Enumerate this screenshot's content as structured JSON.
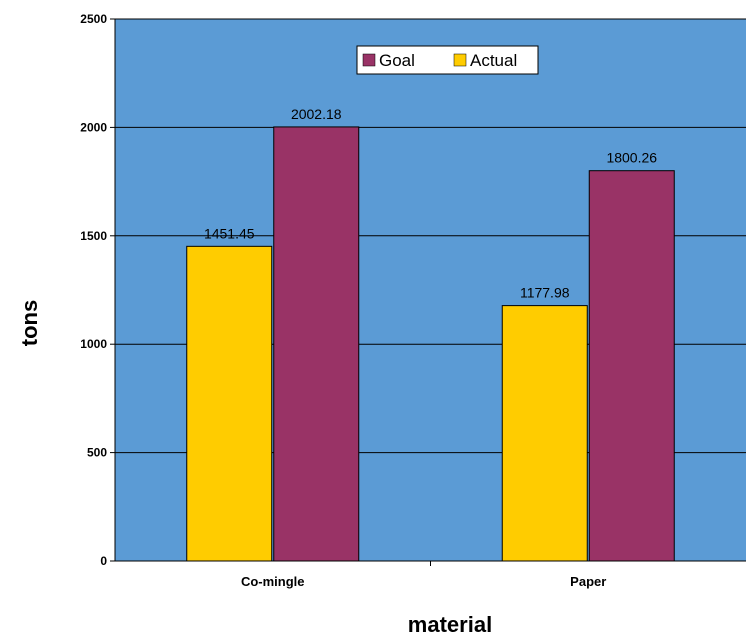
{
  "chart_data": {
    "type": "bar",
    "categories": [
      "Co-mingle",
      "Paper"
    ],
    "series": [
      {
        "name": "Actual",
        "values": [
          1451.45,
          1177.98
        ],
        "color": "#FFCC00"
      },
      {
        "name": "Goal",
        "values": [
          2002.18,
          1800.26
        ],
        "color": "#993366"
      }
    ],
    "data_labels": [
      [
        "1451.45",
        "1177.98"
      ],
      [
        "2002.18",
        "1800.26"
      ]
    ],
    "legend": {
      "entries": [
        "Goal",
        "Actual"
      ],
      "placement": "top-center"
    },
    "xlabel": "material",
    "ylabel": "tons",
    "ylim": [
      0,
      2500
    ],
    "yticks": [
      0,
      500,
      1000,
      1500,
      2000,
      2500
    ],
    "grid": true,
    "plot_background": "#5B9BD5"
  }
}
